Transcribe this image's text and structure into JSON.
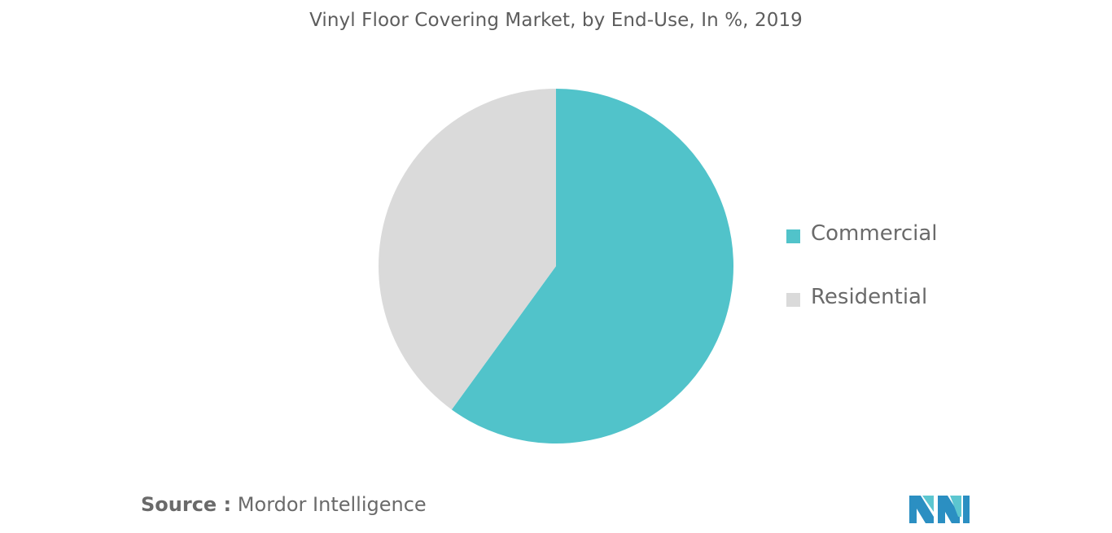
{
  "chart_data": {
    "type": "pie",
    "title": "Vinyl Floor Covering Market, by End-Use, In %, 2019",
    "slices": [
      {
        "name": "Commercial",
        "value": 60,
        "color": "#51c3ca"
      },
      {
        "name": "Residential",
        "value": 40,
        "color": "#dadada"
      }
    ],
    "start_angle_deg": 0,
    "direction": "clockwise",
    "legend_position": "right",
    "data_labels": false
  },
  "source": {
    "prefix": "Source :",
    "text": "Mordor Intelligence"
  },
  "logo": {
    "icon": "mordor-intelligence-logo-icon",
    "colors": [
      "#2b8fc2",
      "#5cc6d0"
    ]
  }
}
